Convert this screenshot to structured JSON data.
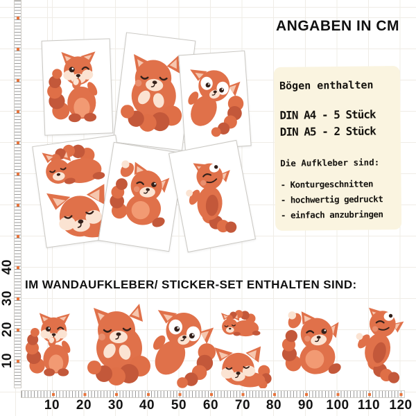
{
  "title": "ANGABEN IN CM",
  "info_box": {
    "heading": "Bögen enthalten",
    "din_a4": "DIN A4 - 5 Stück",
    "din_a5": "DIN A5 - 2 Stück",
    "sub_heading": "Die Aufkleber sind:",
    "features": [
      "- Konturgeschnitten",
      "- hochwertig gedruckt",
      "- einfach anzubringen"
    ],
    "bg_color": "#FAF4E0"
  },
  "set_heading": "IM WANDAUFKLEBER/ STICKER-SET ENTHALTEN SIND:",
  "rulers": {
    "unit": "cm",
    "x_labels": [
      "10",
      "20",
      "30",
      "40",
      "50",
      "60",
      "70",
      "80",
      "90",
      "100",
      "110",
      "120"
    ],
    "y_labels": [
      "40",
      "30",
      "20",
      "10"
    ],
    "dot_color": "#E8743C"
  },
  "sheets": [
    {
      "content": "red panda giggling",
      "pose": "giggle"
    },
    {
      "content": "red panda cuddling its tail",
      "pose": "cuddle"
    },
    {
      "content": "red panda lying with big eyes",
      "pose": "bigeyes"
    },
    {
      "content": "red panda resting and red panda sleeping",
      "pose_top": "rest",
      "pose_bottom": "sleep"
    },
    {
      "content": "red panda playing on its back",
      "pose": "play"
    },
    {
      "content": "red panda stretching",
      "pose": "stretch"
    }
  ],
  "sticker_set": [
    {
      "name": "red-panda-giggling",
      "pose": "giggle"
    },
    {
      "name": "red-panda-cuddling-tail",
      "pose": "cuddle"
    },
    {
      "name": "red-panda-lying-big-eyes",
      "pose": "bigeyes"
    },
    {
      "name": "red-panda-resting",
      "pose": "rest"
    },
    {
      "name": "red-panda-sleeping",
      "pose": "sleep"
    },
    {
      "name": "red-panda-playing-on-back",
      "pose": "play"
    },
    {
      "name": "red-panda-stretching",
      "pose": "stretch"
    }
  ],
  "colors": {
    "panda_orange": "#E0714A",
    "panda_stripe_dark": "#C3583A",
    "panda_cream": "#FBE3D2",
    "accent_dot": "#E8743C",
    "info_box_bg": "#FAF4E0",
    "grid_line": "#EFECE6"
  }
}
